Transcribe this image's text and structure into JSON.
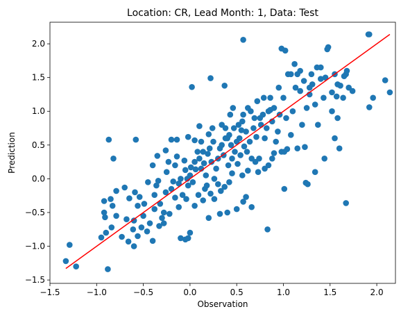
{
  "chart_data": {
    "type": "scatter",
    "title": "Location: CR, Lead Month: 1, Data: Test",
    "xlabel": "Observation",
    "ylabel": "Prediction",
    "xlim": [
      -1.5,
      2.2
    ],
    "ylim": [
      -1.55,
      2.32
    ],
    "x_ticks": [
      "−1.5",
      "−1.0",
      "−0.5",
      "0.0",
      "0.5",
      "1.0",
      "1.5",
      "2.0"
    ],
    "y_ticks": [
      "−1.5",
      "−1.0",
      "−0.5",
      "0.0",
      "0.5",
      "1.0",
      "1.5",
      "2.0"
    ],
    "grid": false,
    "colors": {
      "points": "#1f77b4",
      "fit_line": "#ff0000"
    },
    "fit_line": {
      "x": [
        -1.33,
        2.14
      ],
      "y": [
        -1.33,
        2.14
      ]
    },
    "points": [
      [
        -1.33,
        -1.22
      ],
      [
        -1.29,
        -0.98
      ],
      [
        -1.22,
        -1.3
      ],
      [
        -0.88,
        -1.34
      ],
      [
        -0.95,
        -0.87
      ],
      [
        -0.9,
        -0.8
      ],
      [
        -0.92,
        -0.5
      ],
      [
        -0.91,
        -0.57
      ],
      [
        -0.92,
        -0.33
      ],
      [
        -0.85,
        -0.3
      ],
      [
        -0.83,
        -0.4
      ],
      [
        -0.79,
        -0.18
      ],
      [
        -0.73,
        -0.86
      ],
      [
        -0.7,
        -0.13
      ],
      [
        -0.68,
        -0.6
      ],
      [
        -0.6,
        -0.62
      ],
      [
        -0.61,
        -0.75
      ],
      [
        -0.6,
        -1.0
      ],
      [
        -0.65,
        -0.29
      ],
      [
        -0.59,
        -0.2
      ],
      [
        -0.56,
        -0.4
      ],
      [
        -0.54,
        -0.27
      ],
      [
        -0.5,
        -0.55
      ],
      [
        -0.49,
        -0.37
      ],
      [
        -0.45,
        -0.05
      ],
      [
        -0.43,
        -0.66
      ],
      [
        -0.4,
        -0.92
      ],
      [
        -0.38,
        -0.45
      ],
      [
        -0.38,
        -0.24
      ],
      [
        -0.36,
        -0.1
      ],
      [
        -0.34,
        -0.03
      ],
      [
        -0.32,
        -0.37
      ],
      [
        -0.3,
        -0.58
      ],
      [
        -0.28,
        -0.5
      ],
      [
        -0.26,
        -0.2
      ],
      [
        -0.25,
        0.1
      ],
      [
        -0.23,
        0.25
      ],
      [
        -0.2,
        -0.15
      ],
      [
        -0.18,
        -0.04
      ],
      [
        -0.16,
        0.2
      ],
      [
        -0.14,
        0.33
      ],
      [
        -0.12,
        -0.07
      ],
      [
        -0.1,
        0.0
      ],
      [
        -0.08,
        -0.24
      ],
      [
        -0.06,
        0.27
      ],
      [
        -0.05,
        0.13
      ],
      [
        -0.03,
        0.0
      ],
      [
        -0.02,
        -0.1
      ],
      [
        0.0,
        0.05
      ],
      [
        0.01,
        0.17
      ],
      [
        0.03,
        -0.05
      ],
      [
        0.05,
        0.25
      ],
      [
        0.06,
        0.14
      ],
      [
        0.08,
        0.4
      ],
      [
        0.1,
        0.3
      ],
      [
        0.12,
        0.15
      ],
      [
        0.14,
        0.4
      ],
      [
        0.15,
        0.23
      ],
      [
        0.16,
        -0.15
      ],
      [
        0.17,
        0.05
      ],
      [
        0.19,
        0.37
      ],
      [
        0.21,
        0.45
      ],
      [
        0.23,
        0.25
      ],
      [
        0.25,
        0.55
      ],
      [
        0.26,
        0.0
      ],
      [
        0.28,
        0.15
      ],
      [
        0.3,
        0.3
      ],
      [
        0.32,
        0.45
      ],
      [
        0.34,
        0.5
      ],
      [
        0.36,
        0.35
      ],
      [
        0.38,
        0.6
      ],
      [
        0.4,
        0.6
      ],
      [
        0.41,
        0.2
      ],
      [
        0.42,
        0.65
      ],
      [
        0.44,
        0.5
      ],
      [
        0.45,
        0.3
      ],
      [
        0.47,
        0.75
      ],
      [
        0.48,
        0.4
      ],
      [
        0.5,
        0.55
      ],
      [
        0.51,
        0.22
      ],
      [
        0.52,
        0.8
      ],
      [
        0.53,
        0.6
      ],
      [
        0.54,
        0.35
      ],
      [
        0.56,
        0.85
      ],
      [
        0.57,
        0.95
      ],
      [
        0.58,
        0.48
      ],
      [
        0.6,
        0.7
      ],
      [
        0.61,
        0.4
      ],
      [
        0.62,
        1.05
      ],
      [
        0.64,
        0.55
      ],
      [
        0.66,
        0.3
      ],
      [
        0.68,
        0.75
      ],
      [
        0.69,
        0.9
      ],
      [
        0.71,
        0.62
      ],
      [
        0.72,
        1.15
      ],
      [
        0.74,
        0.3
      ],
      [
        0.76,
        0.8
      ],
      [
        0.78,
        0.95
      ],
      [
        0.8,
        0.6
      ],
      [
        0.82,
        0.75
      ],
      [
        0.84,
        1.0
      ],
      [
        0.86,
        1.2
      ],
      [
        0.88,
        0.85
      ],
      [
        0.9,
        1.05
      ],
      [
        0.92,
        0.55
      ],
      [
        0.94,
        0.7
      ],
      [
        0.96,
        0.95
      ],
      [
        0.98,
        0.4
      ],
      [
        1.0,
        1.2
      ],
      [
        1.03,
        0.9
      ],
      [
        1.05,
        1.55
      ],
      [
        1.08,
        0.65
      ],
      [
        1.1,
        1.0
      ],
      [
        1.13,
        1.35
      ],
      [
        1.15,
        1.55
      ],
      [
        1.18,
        1.3
      ],
      [
        1.2,
        0.8
      ],
      [
        1.22,
        1.45
      ],
      [
        1.25,
        1.05
      ],
      [
        1.28,
        1.25
      ],
      [
        1.31,
        1.4
      ],
      [
        1.34,
        1.1
      ],
      [
        1.37,
        0.8
      ],
      [
        1.4,
        1.65
      ],
      [
        1.43,
        1.2
      ],
      [
        1.45,
        1.5
      ],
      [
        1.48,
        1.95
      ],
      [
        1.52,
        1.0
      ],
      [
        1.55,
        1.55
      ],
      [
        1.58,
        1.4
      ],
      [
        1.6,
        0.45
      ],
      [
        1.64,
        1.2
      ],
      [
        1.67,
        1.55
      ],
      [
        1.7,
        1.35
      ],
      [
        1.91,
        2.14
      ],
      [
        1.92,
        1.06
      ],
      [
        1.96,
        1.2
      ],
      [
        2.09,
        1.46
      ],
      [
        2.14,
        1.28
      ],
      [
        -0.35,
        0.34
      ],
      [
        -0.14,
        0.58
      ],
      [
        0.05,
        0.57
      ],
      [
        0.1,
        0.78
      ],
      [
        0.12,
        0.55
      ],
      [
        0.2,
        0.66
      ],
      [
        0.24,
        0.75
      ],
      [
        0.34,
        0.8
      ],
      [
        0.38,
        0.75
      ],
      [
        0.43,
        0.95
      ],
      [
        0.46,
        1.05
      ],
      [
        0.55,
        0.72
      ],
      [
        0.65,
        1.0
      ],
      [
        0.75,
        0.9
      ],
      [
        0.79,
        1.2
      ],
      [
        0.86,
        1.02
      ],
      [
        0.95,
        1.35
      ],
      [
        0.98,
        1.93
      ],
      [
        1.02,
        1.9
      ],
      [
        1.08,
        1.55
      ],
      [
        1.12,
        1.7
      ],
      [
        1.18,
        1.6
      ],
      [
        1.28,
        1.35
      ],
      [
        1.3,
        1.55
      ],
      [
        1.36,
        1.65
      ],
      [
        1.4,
        1.48
      ],
      [
        1.47,
        1.92
      ],
      [
        1.52,
        1.28
      ],
      [
        1.57,
        1.22
      ],
      [
        1.61,
        1.38
      ],
      [
        1.65,
        1.52
      ],
      [
        1.68,
        1.6
      ],
      [
        1.74,
        1.3
      ],
      [
        1.92,
        2.14
      ],
      [
        0.57,
        2.06
      ],
      [
        0.37,
        1.38
      ],
      [
        0.22,
        1.49
      ],
      [
        0.02,
        1.36
      ],
      [
        -0.58,
        0.58
      ],
      [
        -0.87,
        0.58
      ],
      [
        -0.82,
        0.3
      ],
      [
        -0.4,
        0.2
      ],
      [
        -0.26,
        0.42
      ],
      [
        -0.2,
        0.58
      ],
      [
        -0.02,
        0.62
      ],
      [
        0.0,
        -0.8
      ],
      [
        -0.05,
        -0.9
      ],
      [
        -0.1,
        -0.88
      ],
      [
        -0.02,
        -0.88
      ],
      [
        0.2,
        -0.58
      ],
      [
        0.32,
        -0.52
      ],
      [
        0.4,
        -0.5
      ],
      [
        0.5,
        -0.45
      ],
      [
        0.57,
        -0.34
      ],
      [
        0.6,
        -0.27
      ],
      [
        0.66,
        -0.42
      ],
      [
        0.83,
        -0.75
      ],
      [
        1.01,
        -0.15
      ],
      [
        1.24,
        -0.06
      ],
      [
        1.67,
        -0.36
      ],
      [
        1.26,
        -0.08
      ],
      [
        1.34,
        0.1
      ],
      [
        1.44,
        0.3
      ],
      [
        1.55,
        0.6
      ],
      [
        1.58,
        0.9
      ],
      [
        1.23,
        0.47
      ],
      [
        1.15,
        0.45
      ],
      [
        1.04,
        0.44
      ],
      [
        1.01,
        0.4
      ],
      [
        0.9,
        0.38
      ],
      [
        0.88,
        0.3
      ],
      [
        0.84,
        0.2
      ],
      [
        0.8,
        0.15
      ],
      [
        0.73,
        0.1
      ],
      [
        0.7,
        0.25
      ],
      [
        0.62,
        0.12
      ],
      [
        0.56,
        0.05
      ],
      [
        0.45,
        0.08
      ],
      [
        0.42,
        -0.05
      ],
      [
        0.37,
        -0.12
      ],
      [
        0.33,
        -0.18
      ],
      [
        0.3,
        -0.08
      ],
      [
        0.26,
        -0.3
      ],
      [
        0.22,
        -0.22
      ],
      [
        0.18,
        -0.1
      ],
      [
        0.14,
        -0.32
      ],
      [
        0.09,
        -0.24
      ],
      [
        0.05,
        -0.4
      ],
      [
        -0.04,
        -0.3
      ],
      [
        -0.12,
        -0.42
      ],
      [
        -0.16,
        -0.28
      ],
      [
        -0.22,
        -0.52
      ],
      [
        -0.28,
        -0.66
      ],
      [
        -0.33,
        -0.7
      ],
      [
        -0.46,
        -0.78
      ],
      [
        -0.52,
        -0.72
      ],
      [
        -0.56,
        -0.85
      ],
      [
        -0.66,
        -0.93
      ],
      [
        -0.79,
        -0.55
      ],
      [
        -0.84,
        -0.72
      ]
    ]
  }
}
